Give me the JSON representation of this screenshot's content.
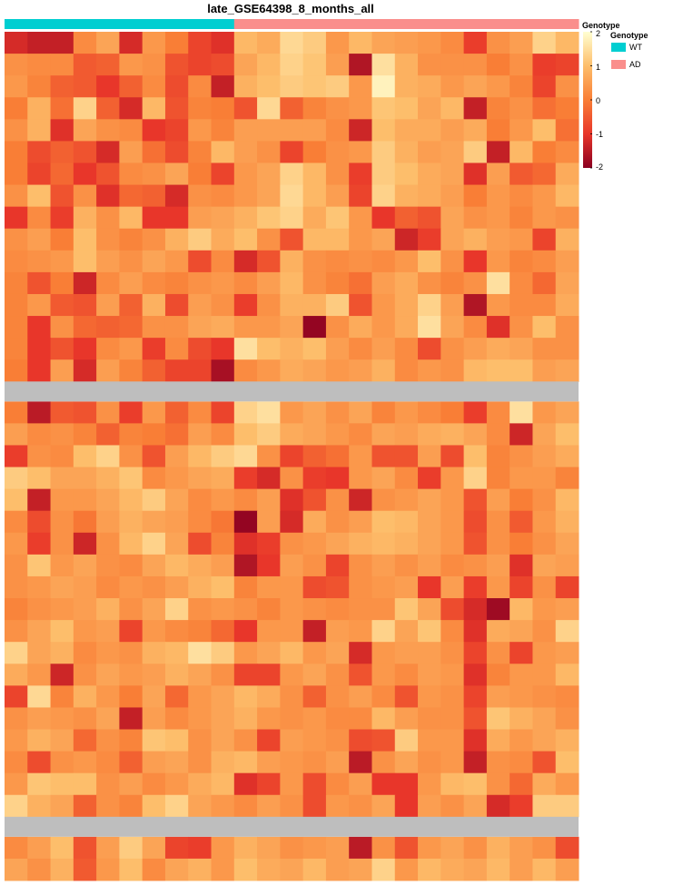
{
  "title": "late_GSE64398_8_months_all",
  "annotation": {
    "name": "Genotype",
    "groups": [
      {
        "label": "WT",
        "color": "#00CED1",
        "count": 10
      },
      {
        "label": "AD",
        "color": "#FA8E8C",
        "count": 15
      }
    ]
  },
  "legend": {
    "color_title": "Genotype",
    "annotation_title": "Genotype",
    "scale_ticks": [
      "2",
      "1",
      "0",
      "-1",
      "-2"
    ],
    "scale_colors": [
      "#FFFFD2",
      "#FDBE6B",
      "#F97E36",
      "#E8362A",
      "#8B0021"
    ],
    "gap_color": "#BEBEBE"
  },
  "chart_data": {
    "type": "heatmap",
    "title": "late_GSE64398_8_months_all",
    "n_columns": 25,
    "column_groups": [
      "WT",
      "WT",
      "WT",
      "WT",
      "WT",
      "WT",
      "WT",
      "WT",
      "WT",
      "WT",
      "AD",
      "AD",
      "AD",
      "AD",
      "AD",
      "AD",
      "AD",
      "AD",
      "AD",
      "AD",
      "AD",
      "AD",
      "AD",
      "AD",
      "AD"
    ],
    "value_range": [
      -2,
      2
    ],
    "row_blocks": [
      {
        "values": [
          [
            -1.2,
            -1.4,
            -1.4,
            0.2,
            0.6,
            -1.2,
            0.4,
            0.0,
            -0.8,
            -1.1,
            0.9,
            0.7,
            1.4,
            1.2,
            0.4,
            0.9,
            0.6,
            0.5,
            0.4,
            0.2,
            -0.9,
            0.3,
            0.5,
            1.3,
            0.9
          ],
          [
            0.3,
            0.2,
            0.2,
            -0.5,
            -0.4,
            0.4,
            0.3,
            -0.6,
            -0.8,
            -0.7,
            0.6,
            0.9,
            1.3,
            1.1,
            0.5,
            -1.6,
            1.5,
            0.8,
            0.3,
            0.3,
            0.3,
            0.0,
            0.3,
            -0.9,
            -0.8
          ],
          [
            0.4,
            0.1,
            -0.4,
            -0.5,
            -1.0,
            -0.4,
            0.2,
            -0.7,
            0.2,
            -1.4,
            0.8,
            1.0,
            1.2,
            1.1,
            1.2,
            0.4,
            1.8,
            0.8,
            0.7,
            0.4,
            0.6,
            0.4,
            0.1,
            -0.8,
            0.3
          ],
          [
            0.0,
            0.8,
            -0.2,
            1.3,
            -0.4,
            -1.2,
            0.9,
            -0.6,
            0.1,
            0.0,
            -0.6,
            1.4,
            -0.4,
            0.1,
            0.3,
            0.4,
            1.1,
            1.0,
            0.6,
            0.9,
            -1.4,
            0.1,
            0.3,
            -0.2,
            0.0
          ],
          [
            0.3,
            0.8,
            -1.1,
            0.6,
            0.3,
            0.2,
            -1.0,
            -0.8,
            0.4,
            0.1,
            0.5,
            0.5,
            0.5,
            0.5,
            0.2,
            -1.3,
            1.0,
            0.7,
            0.7,
            0.5,
            0.7,
            0.0,
            0.4,
            1.0,
            -0.2
          ],
          [
            0.0,
            -0.7,
            -0.4,
            -0.6,
            -1.2,
            0.5,
            -0.2,
            -0.7,
            0.1,
            0.9,
            0.5,
            0.3,
            -0.8,
            0.0,
            0.3,
            0.4,
            1.2,
            0.8,
            0.5,
            0.6,
            1.2,
            -1.4,
            0.9,
            0.0,
            0.2
          ],
          [
            0.0,
            -0.8,
            -0.3,
            -1.0,
            -0.6,
            0.2,
            0.3,
            0.6,
            0.0,
            -0.8,
            0.4,
            0.6,
            1.3,
            0.9,
            0.3,
            -0.9,
            1.2,
            1.0,
            0.7,
            0.6,
            -1.1,
            0.5,
            -0.5,
            -0.3,
            0.7
          ],
          [
            0.3,
            1.0,
            -0.6,
            0.3,
            -1.1,
            -0.3,
            -0.4,
            -1.2,
            0.3,
            0.2,
            0.4,
            0.6,
            1.4,
            0.9,
            0.5,
            -0.8,
            1.3,
            0.8,
            0.7,
            0.5,
            0.0,
            0.4,
            0.2,
            0.4,
            0.9
          ],
          [
            -1.0,
            0.2,
            -0.9,
            0.8,
            0.3,
            0.9,
            -1.0,
            -1.0,
            0.5,
            0.6,
            0.8,
            1.1,
            1.3,
            0.7,
            1.1,
            0.4,
            -1.0,
            -0.4,
            -0.6,
            0.6,
            0.3,
            0.4,
            0.1,
            0.4,
            0.3
          ],
          [
            0.3,
            0.5,
            0.0,
            1.0,
            0.3,
            0.1,
            0.3,
            0.8,
            1.2,
            0.7,
            1.0,
            0.3,
            -0.6,
            0.9,
            0.9,
            0.4,
            0.6,
            -1.3,
            -0.9,
            0.6,
            0.8,
            0.5,
            0.4,
            -0.8,
            0.8
          ],
          [
            0.2,
            0.3,
            0.4,
            1.0,
            0.5,
            0.3,
            0.6,
            0.4,
            -0.7,
            0.2,
            -1.2,
            -0.6,
            0.8,
            0.3,
            0.2,
            0.3,
            0.2,
            0.4,
            1.0,
            0.3,
            -1.0,
            0.4,
            0.1,
            0.2,
            0.5
          ],
          [
            0.1,
            -0.6,
            0.0,
            -1.3,
            0.2,
            0.5,
            0.2,
            0.1,
            0.3,
            0.4,
            0.2,
            0.5,
            0.9,
            0.3,
            0.1,
            -0.2,
            0.5,
            0.7,
            0.3,
            0.1,
            0.3,
            1.5,
            0.2,
            -0.3,
            0.6
          ],
          [
            0.1,
            0.4,
            -0.5,
            -0.6,
            0.5,
            -0.4,
            0.8,
            -0.7,
            0.5,
            0.3,
            -0.9,
            0.3,
            0.8,
            0.8,
            1.2,
            -0.6,
            0.4,
            0.7,
            1.3,
            0.5,
            -1.6,
            0.4,
            0.2,
            0.2,
            0.7
          ],
          [
            0.1,
            -1.0,
            0.3,
            -0.3,
            -0.4,
            -0.3,
            0.3,
            0.3,
            0.6,
            0.7,
            0.4,
            0.4,
            0.6,
            -1.9,
            0.3,
            0.7,
            0.4,
            0.7,
            1.5,
            0.6,
            0.2,
            -1.1,
            0.3,
            1.0,
            0.3
          ],
          [
            0.1,
            -1.0,
            -0.6,
            -1.0,
            0.2,
            0.4,
            -0.9,
            0.2,
            -0.7,
            -1.0,
            1.5,
            1.0,
            0.8,
            1.0,
            0.5,
            0.2,
            0.5,
            0.2,
            -0.7,
            0.3,
            0.5,
            0.7,
            0.6,
            0.3,
            0.3
          ],
          [
            0.0,
            -1.0,
            0.5,
            -1.2,
            0.5,
            0.1,
            -0.4,
            -0.8,
            -0.8,
            -1.7,
            0.2,
            0.4,
            0.7,
            0.6,
            0.4,
            0.5,
            0.8,
            0.2,
            0.4,
            0.3,
            0.9,
            1.0,
            1.0,
            0.5,
            0.6
          ]
        ]
      },
      {
        "values": [
          [
            0.0,
            -1.5,
            -0.5,
            -0.6,
            0.3,
            -0.9,
            0.4,
            -0.4,
            0.2,
            -0.8,
            1.3,
            1.5,
            0.4,
            0.6,
            0.3,
            0.6,
            0.1,
            0.4,
            0.2,
            0.0,
            -0.9,
            0.2,
            1.5,
            0.4,
            0.6
          ],
          [
            0.5,
            0.2,
            0.3,
            0.1,
            -0.4,
            0.1,
            0.0,
            -0.2,
            0.5,
            0.2,
            1.0,
            1.2,
            0.7,
            0.6,
            0.4,
            0.2,
            0.6,
            0.5,
            0.7,
            0.8,
            0.6,
            0.2,
            -1.3,
            0.6,
            1.0
          ],
          [
            -0.9,
            0.3,
            0.2,
            1.0,
            1.3,
            0.3,
            -0.6,
            0.5,
            0.9,
            1.2,
            1.4,
            0.3,
            -0.8,
            -0.4,
            -0.2,
            0.4,
            -0.6,
            -0.6,
            0.5,
            -0.7,
            1.0,
            0.1,
            0.3,
            0.5,
            0.7
          ],
          [
            1.2,
            1.0,
            0.6,
            0.6,
            0.8,
            1.1,
            0.2,
            0.4,
            0.6,
            0.7,
            -0.9,
            -1.2,
            0.3,
            -0.9,
            -1.0,
            0.4,
            0.6,
            0.2,
            -0.9,
            0.4,
            1.3,
            0.1,
            0.4,
            0.4,
            0.1
          ],
          [
            1.0,
            -1.4,
            0.4,
            0.4,
            0.6,
            0.9,
            1.2,
            0.6,
            0.2,
            0.4,
            0.2,
            0.5,
            -1.1,
            -0.6,
            0.3,
            -1.3,
            0.3,
            0.4,
            0.6,
            0.4,
            -0.6,
            0.5,
            0.0,
            0.3,
            0.9
          ],
          [
            0.2,
            -0.7,
            0.3,
            -0.1,
            0.5,
            0.8,
            0.6,
            0.5,
            0.2,
            -0.1,
            -1.9,
            0.5,
            -1.2,
            0.7,
            0.3,
            0.5,
            1.0,
            0.9,
            0.6,
            0.4,
            -0.7,
            0.3,
            -0.5,
            0.4,
            0.8
          ],
          [
            0.4,
            -0.9,
            0.3,
            -1.3,
            0.3,
            0.9,
            1.3,
            0.6,
            -0.7,
            0.1,
            -1.1,
            -0.9,
            0.3,
            0.4,
            0.6,
            0.8,
            0.9,
            0.8,
            0.6,
            0.4,
            -0.6,
            0.3,
            0.0,
            0.3,
            0.6
          ],
          [
            0.3,
            1.1,
            0.4,
            0.6,
            0.3,
            0.2,
            0.6,
            0.9,
            0.7,
            0.5,
            -1.6,
            -1.0,
            0.5,
            0.3,
            -0.8,
            0.3,
            0.5,
            0.3,
            0.5,
            0.2,
            0.3,
            0.5,
            -1.1,
            0.6,
            0.5
          ],
          [
            0.3,
            0.4,
            0.6,
            0.5,
            0.2,
            0.4,
            0.3,
            0.5,
            0.8,
            1.0,
            0.1,
            0.4,
            0.4,
            -0.7,
            -0.6,
            0.3,
            0.4,
            0.5,
            -1.0,
            0.5,
            -0.9,
            0.4,
            -0.8,
            0.3,
            -0.8
          ],
          [
            0.1,
            0.3,
            0.4,
            0.5,
            0.8,
            0.3,
            0.6,
            1.3,
            0.3,
            0.4,
            0.3,
            0.1,
            0.4,
            0.3,
            0.2,
            0.3,
            0.3,
            1.1,
            0.6,
            -0.7,
            -1.2,
            -1.8,
            0.9,
            0.4,
            0.5
          ],
          [
            0.3,
            0.6,
            1.0,
            0.4,
            0.5,
            -0.8,
            0.4,
            0.2,
            0.1,
            -0.3,
            -1.0,
            0.4,
            0.4,
            -1.4,
            0.5,
            0.4,
            1.3,
            0.6,
            1.1,
            0.2,
            -1.1,
            0.7,
            0.6,
            0.3,
            1.3
          ],
          [
            1.3,
            0.6,
            0.8,
            0.2,
            0.4,
            0.3,
            0.8,
            0.9,
            1.5,
            1.2,
            0.4,
            0.6,
            0.9,
            0.4,
            0.6,
            -1.2,
            0.4,
            0.5,
            0.5,
            0.3,
            -0.8,
            0.3,
            -0.8,
            0.4,
            0.5
          ],
          [
            0.7,
            0.4,
            -1.3,
            0.3,
            0.6,
            0.4,
            0.5,
            0.8,
            0.6,
            0.3,
            -0.8,
            -0.8,
            0.4,
            0.6,
            0.3,
            -0.6,
            0.4,
            0.2,
            0.5,
            0.4,
            -1.1,
            0.1,
            0.4,
            0.4,
            0.9
          ],
          [
            -0.8,
            1.4,
            0.1,
            0.8,
            0.4,
            0.0,
            0.6,
            -0.3,
            0.4,
            0.6,
            0.9,
            0.7,
            0.3,
            -0.4,
            0.3,
            0.5,
            0.2,
            -0.6,
            0.4,
            0.3,
            -0.8,
            0.5,
            0.4,
            0.3,
            0.2
          ],
          [
            0.3,
            0.5,
            0.4,
            0.3,
            0.6,
            -1.4,
            0.5,
            0.2,
            0.4,
            0.6,
            0.8,
            0.4,
            0.3,
            0.4,
            0.2,
            0.2,
            0.9,
            0.5,
            0.3,
            0.3,
            -0.6,
            1.1,
            0.8,
            0.6,
            0.3
          ],
          [
            0.4,
            0.8,
            0.6,
            -0.3,
            0.3,
            0.1,
            1.1,
            1.0,
            0.3,
            0.6,
            0.3,
            -0.8,
            0.5,
            0.4,
            0.3,
            -0.7,
            -0.6,
            1.2,
            0.4,
            0.4,
            -1.1,
            0.7,
            0.4,
            0.6,
            0.8
          ],
          [
            0.2,
            -0.7,
            0.3,
            0.4,
            0.2,
            -0.4,
            0.5,
            0.6,
            0.3,
            0.8,
            0.9,
            0.5,
            0.4,
            0.3,
            0.5,
            -1.5,
            0.3,
            0.6,
            0.3,
            0.4,
            -1.4,
            0.3,
            0.2,
            -0.6,
            1.0
          ],
          [
            0.4,
            1.1,
            1.0,
            1.0,
            0.3,
            0.5,
            0.2,
            0.4,
            0.7,
            0.9,
            -1.1,
            -0.8,
            0.4,
            -0.7,
            0.2,
            0.5,
            -1.0,
            -1.0,
            0.4,
            0.9,
            1.0,
            0.3,
            -0.3,
            0.7,
            0.4
          ],
          [
            1.3,
            0.8,
            0.6,
            -0.4,
            0.3,
            0.1,
            1.0,
            1.3,
            0.6,
            0.4,
            0.2,
            0.5,
            0.3,
            -0.7,
            0.4,
            0.3,
            0.6,
            -1.0,
            0.5,
            0.3,
            0.6,
            -1.2,
            -0.9,
            1.2,
            1.2
          ]
        ]
      },
      {
        "values": [
          [
            0.2,
            0.5,
            1.0,
            -0.6,
            0.5,
            1.2,
            0.6,
            -0.8,
            -0.9,
            0.4,
            0.8,
            0.6,
            0.3,
            0.4,
            0.5,
            -1.5,
            0.3,
            -0.6,
            0.4,
            0.6,
            0.3,
            0.8,
            0.5,
            0.3,
            -0.7
          ],
          [
            0.6,
            0.3,
            0.8,
            -0.5,
            0.4,
            1.0,
            0.2,
            0.6,
            0.8,
            0.4,
            1.0,
            0.7,
            0.6,
            0.9,
            0.5,
            0.6,
            1.3,
            0.4,
            0.9,
            0.7,
            0.6,
            0.9,
            0.5,
            0.9,
            0.5
          ]
        ]
      }
    ]
  }
}
